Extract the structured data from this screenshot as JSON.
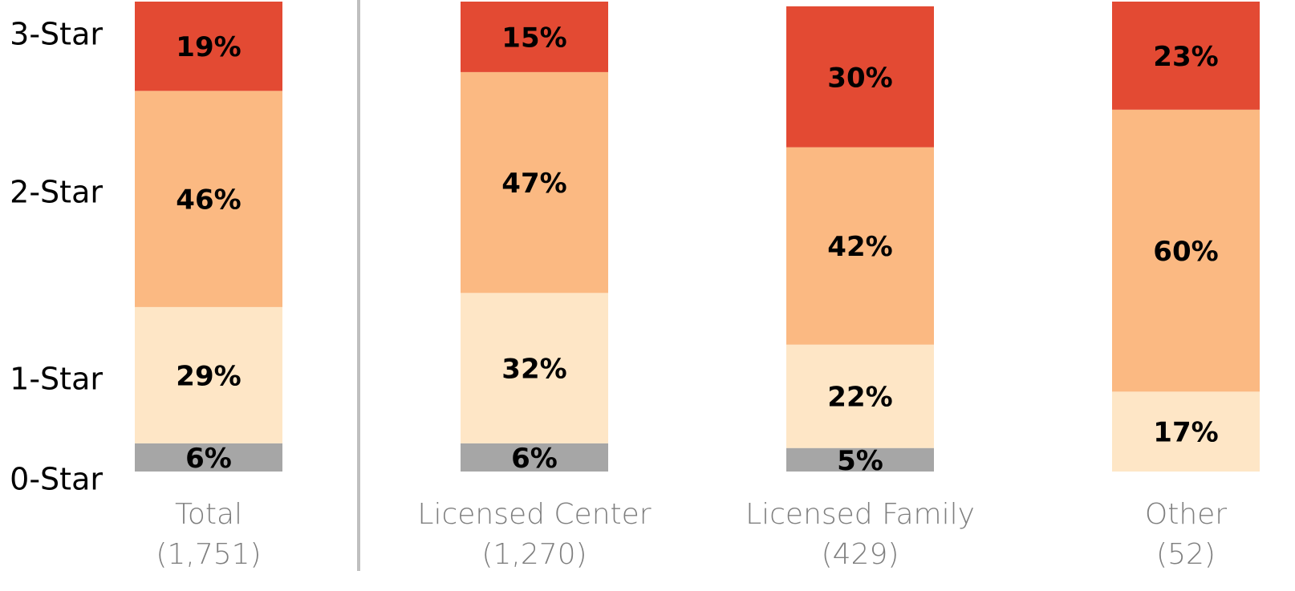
{
  "chart_data": {
    "type": "stacked_bar",
    "categories": [
      "Total",
      "Licensed Center",
      "Licensed Family",
      "Other"
    ],
    "category_counts": [
      "(1,751)",
      "(1,270)",
      "(429)",
      "(52)"
    ],
    "ylim": [
      0,
      100
    ],
    "series": [
      {
        "name": "0-Star",
        "color": "#a6a6a6",
        "values": [
          6,
          6,
          5,
          null
        ],
        "value_labels": [
          "6%",
          "6%",
          "5%",
          null
        ]
      },
      {
        "name": "1-Star",
        "color": "#fee6c6",
        "values": [
          29,
          32,
          22,
          17
        ],
        "value_labels": [
          "29%",
          "32%",
          "22%",
          "17%"
        ]
      },
      {
        "name": "2-Star",
        "color": "#fbb982",
        "values": [
          46,
          47,
          42,
          60
        ],
        "value_labels": [
          "46%",
          "47%",
          "42%",
          "60%"
        ]
      },
      {
        "name": "3-Star",
        "color": "#e34a33",
        "values": [
          19,
          15,
          30,
          23
        ],
        "value_labels": [
          "19%",
          "15%",
          "30%",
          "23%"
        ]
      }
    ]
  }
}
